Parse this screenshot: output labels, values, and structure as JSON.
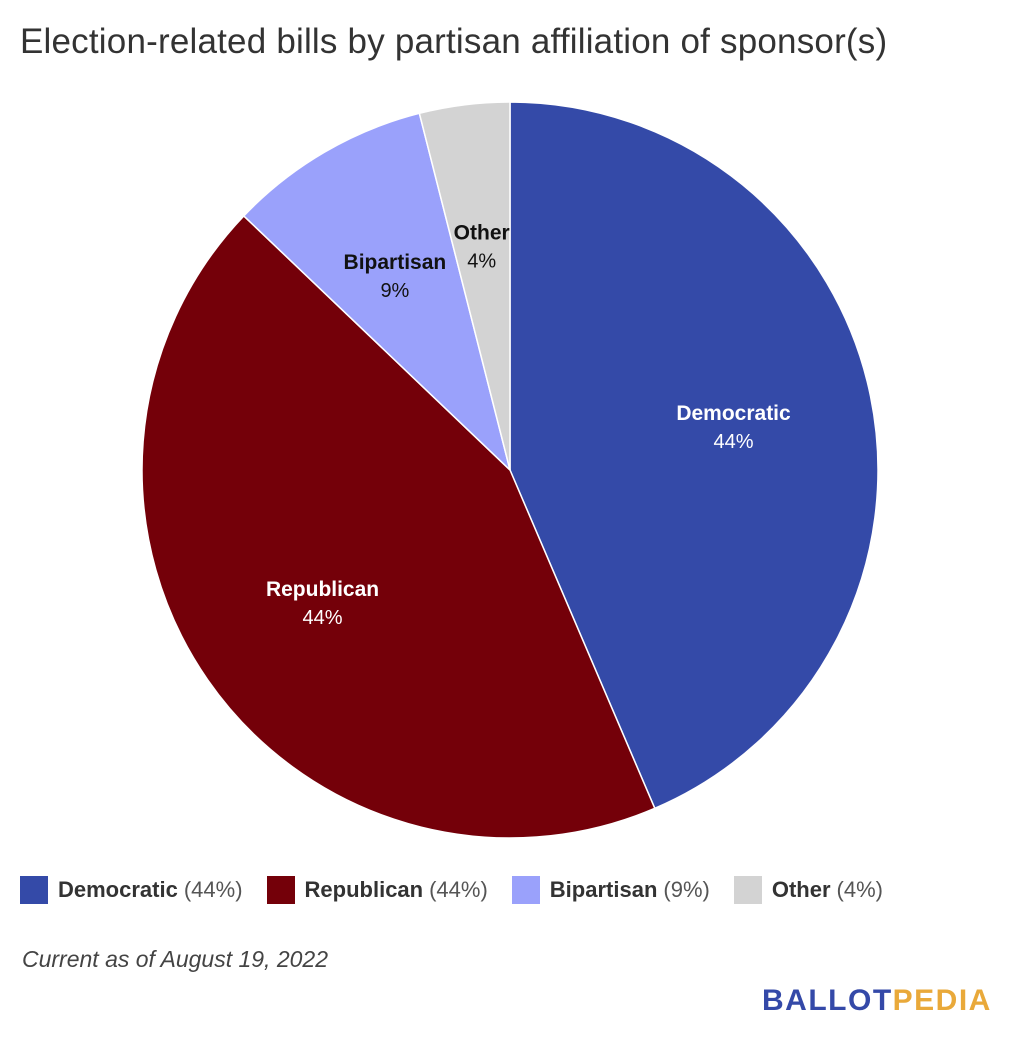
{
  "chart_data": {
    "type": "pie",
    "title": "Election-related bills by partisan affiliation of sponsor(s)",
    "slices": [
      {
        "label": "Democratic",
        "value": 44,
        "pct_text": "44%",
        "color": "#344aa8",
        "text_color": "#ffffff"
      },
      {
        "label": "Republican",
        "value": 44,
        "pct_text": "44%",
        "color": "#740009",
        "text_color": "#ffffff"
      },
      {
        "label": "Bipartisan",
        "value": 9,
        "pct_text": "9%",
        "color": "#9aa1fb",
        "text_color": "#111111"
      },
      {
        "label": "Other",
        "value": 4,
        "pct_text": "4%",
        "color": "#d3d3d3",
        "text_color": "#111111"
      }
    ],
    "legend": {
      "placement": "bottom",
      "items": [
        {
          "label": "Democratic",
          "pct": "(44%)",
          "color": "#344aa8"
        },
        {
          "label": "Republican",
          "pct": "(44%)",
          "color": "#740009"
        },
        {
          "label": "Bipartisan",
          "pct": "(9%)",
          "color": "#9aa1fb"
        },
        {
          "label": "Other",
          "pct": "(4%)",
          "color": "#d3d3d3"
        }
      ]
    }
  },
  "footnote": "Current as of August 19, 2022",
  "logo": {
    "part1": "BALLOT",
    "part2": "PEDIA",
    "color1": "#3449a8",
    "color2": "#e9a93a"
  }
}
